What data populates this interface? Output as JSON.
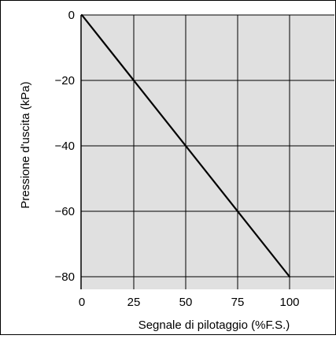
{
  "chart_data": {
    "type": "line",
    "title": "",
    "xlabel": "Segnale di pilotaggio  (%F.S.)",
    "ylabel": "Pressione d'uscita (kPa)",
    "xlim": [
      0,
      125
    ],
    "ylim": [
      -85,
      0
    ],
    "x_ticks": [
      0,
      25,
      50,
      75,
      100
    ],
    "x_tick_labels": [
      "0",
      "25",
      "50",
      "75",
      "100"
    ],
    "y_ticks": [
      0,
      -20,
      -40,
      -60,
      -80
    ],
    "y_tick_labels": [
      "0",
      "−20",
      "−40",
      "−60",
      "−80"
    ],
    "grid": true,
    "colors": {
      "plot_background": "#e0e0e0",
      "grid": "#000000",
      "line": "#000000",
      "frame": "#000000"
    },
    "series": [
      {
        "x": [
          0,
          100
        ],
        "values": [
          0,
          -80
        ]
      }
    ]
  }
}
